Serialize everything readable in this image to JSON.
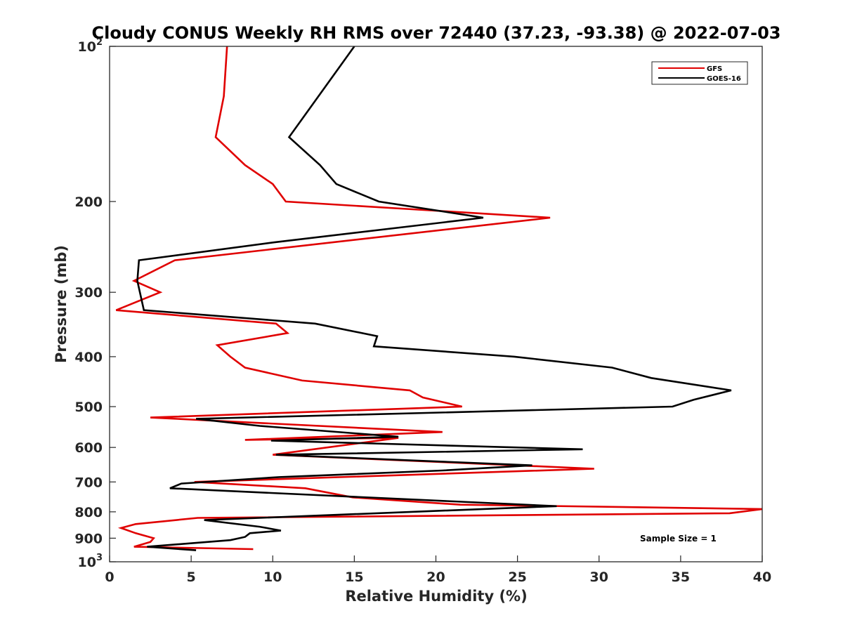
{
  "chart_data": {
    "type": "line",
    "title": "Cloudy CONUS Weekly RH RMS over 72440 (37.23, -93.38) @ 2022-07-03",
    "xlabel": "Relative Humidity (%)",
    "ylabel": "Pressure (mb)",
    "xlim": [
      0,
      40
    ],
    "ylim": [
      100,
      1000
    ],
    "y_scale": "log",
    "y_reversed": true,
    "x_ticks": [
      "0",
      "5",
      "10",
      "15",
      "20",
      "25",
      "30",
      "35",
      "40"
    ],
    "y_ticks": [
      {
        "value": 100,
        "label": "10",
        "sup": "2"
      },
      {
        "value": 200,
        "label": "200"
      },
      {
        "value": 300,
        "label": "300"
      },
      {
        "value": 400,
        "label": "400"
      },
      {
        "value": 500,
        "label": "500"
      },
      {
        "value": 600,
        "label": "600"
      },
      {
        "value": 700,
        "label": "700"
      },
      {
        "value": 800,
        "label": "800"
      },
      {
        "value": 900,
        "label": "900"
      },
      {
        "value": 1000,
        "label": "10",
        "sup": "3"
      }
    ],
    "grid": false,
    "legend_position": "top-right",
    "annotation": "Sample Size = 1",
    "series": [
      {
        "name": "GFS",
        "color": "#e00000",
        "points": [
          [
            7.2,
            100
          ],
          [
            7.0,
            125
          ],
          [
            6.5,
            150
          ],
          [
            8.3,
            170
          ],
          [
            10.0,
            185
          ],
          [
            10.8,
            200
          ],
          [
            27.0,
            215
          ],
          [
            4.0,
            260
          ],
          [
            1.5,
            285
          ],
          [
            3.1,
            300
          ],
          [
            0.4,
            325
          ],
          [
            10.2,
            345
          ],
          [
            10.9,
            360
          ],
          [
            6.6,
            380
          ],
          [
            7.4,
            400
          ],
          [
            8.3,
            420
          ],
          [
            11.8,
            445
          ],
          [
            18.4,
            465
          ],
          [
            19.2,
            480
          ],
          [
            21.6,
            500
          ],
          [
            2.5,
            525
          ],
          [
            20.4,
            560
          ],
          [
            8.3,
            580
          ],
          [
            17.7,
            575
          ],
          [
            10.0,
            620
          ],
          [
            29.7,
            660
          ],
          [
            5.2,
            700
          ],
          [
            12.0,
            720
          ],
          [
            14.9,
            750
          ],
          [
            21.5,
            775
          ],
          [
            40.0,
            790
          ],
          [
            38.0,
            805
          ],
          [
            5.4,
            822
          ],
          [
            1.6,
            845
          ],
          [
            0.7,
            860
          ],
          [
            1.6,
            880
          ],
          [
            2.7,
            900
          ],
          [
            2.5,
            915
          ],
          [
            1.5,
            935
          ],
          [
            8.8,
            945
          ]
        ]
      },
      {
        "name": "GOES-16",
        "color": "#000000",
        "points": [
          [
            15.0,
            100
          ],
          [
            11.0,
            150
          ],
          [
            12.9,
            170
          ],
          [
            13.9,
            185
          ],
          [
            16.5,
            200
          ],
          [
            22.9,
            215
          ],
          [
            10.1,
            240
          ],
          [
            1.8,
            260
          ],
          [
            1.7,
            285
          ],
          [
            2.1,
            325
          ],
          [
            12.6,
            345
          ],
          [
            16.4,
            365
          ],
          [
            16.2,
            382
          ],
          [
            24.8,
            400
          ],
          [
            30.8,
            420
          ],
          [
            33.2,
            440
          ],
          [
            38.1,
            465
          ],
          [
            35.8,
            485
          ],
          [
            34.5,
            500
          ],
          [
            5.3,
            528
          ],
          [
            9.2,
            545
          ],
          [
            17.7,
            572
          ],
          [
            9.9,
            582
          ],
          [
            29.0,
            605
          ],
          [
            10.2,
            620
          ],
          [
            25.9,
            650
          ],
          [
            20.4,
            665
          ],
          [
            10.4,
            685
          ],
          [
            4.4,
            705
          ],
          [
            3.7,
            720
          ],
          [
            27.4,
            780
          ],
          [
            5.8,
            830
          ],
          [
            9.2,
            855
          ],
          [
            10.5,
            870
          ],
          [
            8.6,
            880
          ],
          [
            8.3,
            895
          ],
          [
            7.4,
            908
          ],
          [
            2.3,
            935
          ],
          [
            5.3,
            950
          ]
        ]
      }
    ]
  }
}
